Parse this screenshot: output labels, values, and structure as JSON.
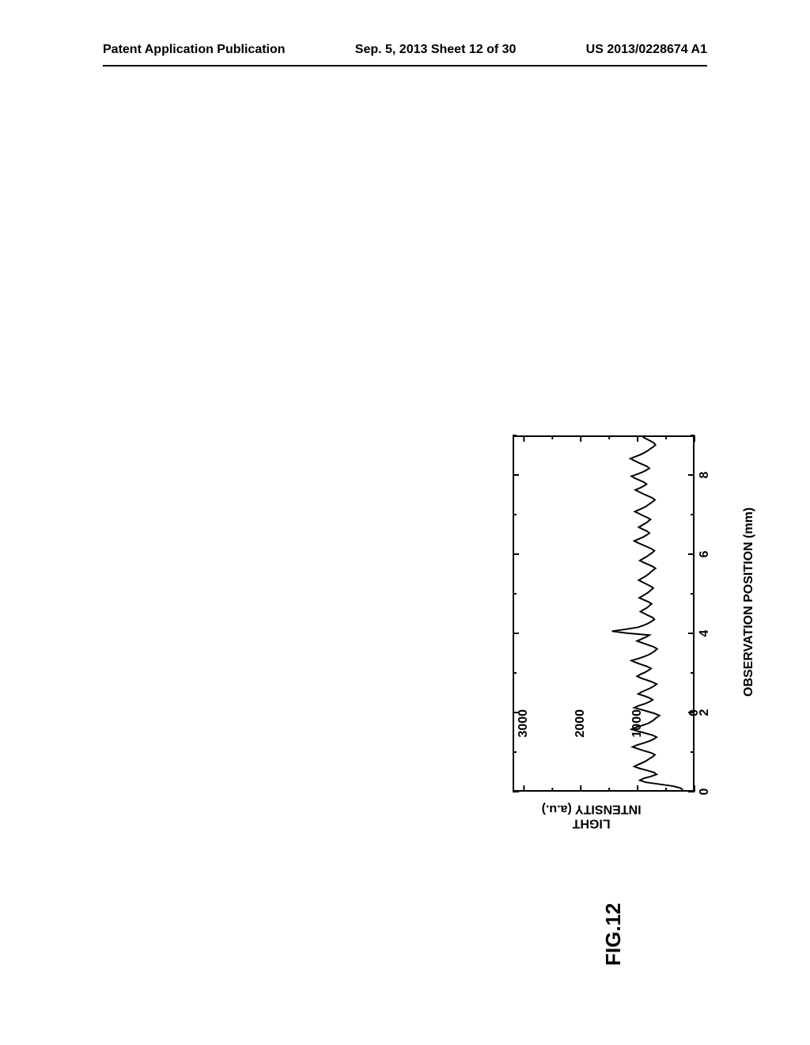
{
  "header": {
    "left": "Patent Application Publication",
    "center": "Sep. 5, 2013   Sheet 12 of 30",
    "right": "US 2013/0228674 A1"
  },
  "figure": {
    "type": "line",
    "label": "FIG.12",
    "xlabel": "OBSERVATION POSITION (mm)",
    "ylabel_line1": "LIGHT",
    "ylabel_line2": "INTENSITY",
    "ylabel_unit": "(a.u.)",
    "xlim": [
      0,
      9
    ],
    "ylim": [
      0,
      3200
    ],
    "xtick_values": [
      0,
      2,
      4,
      6,
      8
    ],
    "xtick_labels": [
      "0",
      "2",
      "4",
      "6",
      "8"
    ],
    "ytick_values": [
      0,
      1000,
      2000,
      3000
    ],
    "ytick_labels": [
      "0",
      "1000",
      "2000",
      "3000"
    ],
    "minor_xticks": [
      1,
      3,
      5,
      7,
      9
    ],
    "minor_yticks": [
      500,
      1500,
      2500
    ],
    "line_color": "#000000",
    "line_width": 2,
    "background_color": "#ffffff",
    "axis_color": "#000000",
    "axis_width": 2.5,
    "tick_len_major": 8,
    "tick_len_minor": 5,
    "data": {
      "x": [
        0,
        0.05,
        0.1,
        0.15,
        0.2,
        0.25,
        0.3,
        0.35,
        0.4,
        0.45,
        0.5,
        0.55,
        0.6,
        0.65,
        0.7,
        0.75,
        0.8,
        0.85,
        0.9,
        0.95,
        1,
        1.05,
        1.1,
        1.15,
        1.2,
        1.25,
        1.3,
        1.35,
        1.4,
        1.45,
        1.5,
        1.55,
        1.6,
        1.65,
        1.7,
        1.75,
        1.8,
        1.85,
        1.9,
        1.95,
        2,
        2.05,
        2.1,
        2.15,
        2.2,
        2.25,
        2.3,
        2.35,
        2.4,
        2.45,
        2.5,
        2.55,
        2.6,
        2.65,
        2.7,
        2.75,
        2.8,
        2.85,
        2.9,
        2.95,
        3,
        3.05,
        3.1,
        3.15,
        3.2,
        3.25,
        3.3,
        3.35,
        3.4,
        3.45,
        3.5,
        3.55,
        3.6,
        3.65,
        3.7,
        3.75,
        3.8,
        3.85,
        3.9,
        3.95,
        4,
        4.05,
        4.1,
        4.15,
        4.2,
        4.25,
        4.3,
        4.35,
        4.4,
        4.45,
        4.5,
        4.55,
        4.6,
        4.65,
        4.7,
        4.75,
        4.8,
        4.85,
        4.9,
        4.95,
        5,
        5.05,
        5.1,
        5.15,
        5.2,
        5.25,
        5.3,
        5.35,
        5.4,
        5.45,
        5.5,
        5.55,
        5.6,
        5.65,
        5.7,
        5.75,
        5.8,
        5.85,
        5.9,
        5.95,
        6,
        6.05,
        6.1,
        6.15,
        6.2,
        6.25,
        6.3,
        6.35,
        6.4,
        6.45,
        6.5,
        6.55,
        6.6,
        6.65,
        6.7,
        6.75,
        6.8,
        6.85,
        6.9,
        6.95,
        7,
        7.05,
        7.1,
        7.15,
        7.2,
        7.25,
        7.3,
        7.35,
        7.4,
        7.45,
        7.5,
        7.55,
        7.6,
        7.65,
        7.7,
        7.75,
        7.8,
        7.85,
        7.9,
        7.95,
        8,
        8.05,
        8.1,
        8.15,
        8.2,
        8.25,
        8.3,
        8.35,
        8.4,
        8.45,
        8.5,
        8.55,
        8.6,
        8.65,
        8.7,
        8.75,
        8.8,
        8.85,
        8.9,
        8.95,
        9
      ],
      "y": [
        180,
        220,
        350,
        600,
        850,
        950,
        880,
        750,
        650,
        700,
        820,
        950,
        1050,
        980,
        900,
        830,
        780,
        720,
        680,
        750,
        870,
        980,
        1080,
        1000,
        880,
        780,
        700,
        650,
        720,
        850,
        980,
        1100,
        1020,
        900,
        800,
        740,
        690,
        650,
        600,
        680,
        800,
        920,
        1050,
        970,
        860,
        780,
        720,
        780,
        870,
        980,
        920,
        840,
        760,
        700,
        650,
        720,
        820,
        920,
        1000,
        940,
        860,
        800,
        750,
        820,
        920,
        1020,
        1100,
        980,
        880,
        790,
        730,
        680,
        640,
        700,
        800,
        900,
        1000,
        920,
        840,
        780,
        1180,
        1450,
        1200,
        980,
        880,
        800,
        740,
        690,
        720,
        800,
        870,
        940,
        880,
        820,
        780,
        740,
        800,
        880,
        960,
        900,
        840,
        790,
        750,
        710,
        760,
        830,
        900,
        970,
        910,
        850,
        800,
        760,
        720,
        670,
        720,
        800,
        880,
        950,
        890,
        830,
        780,
        730,
        690,
        740,
        820,
        900,
        980,
        1050,
        970,
        890,
        830,
        780,
        820,
        900,
        970,
        910,
        850,
        800,
        760,
        820,
        900,
        970,
        1040,
        960,
        880,
        820,
        770,
        720,
        680,
        730,
        810,
        890,
        960,
        1030,
        950,
        880,
        830,
        880,
        960,
        1040,
        1100,
        1000,
        910,
        840,
        780,
        820,
        900,
        980,
        1050,
        1120,
        1030,
        940,
        870,
        810,
        760,
        710,
        670,
        700,
        760,
        830,
        900
      ]
    }
  }
}
